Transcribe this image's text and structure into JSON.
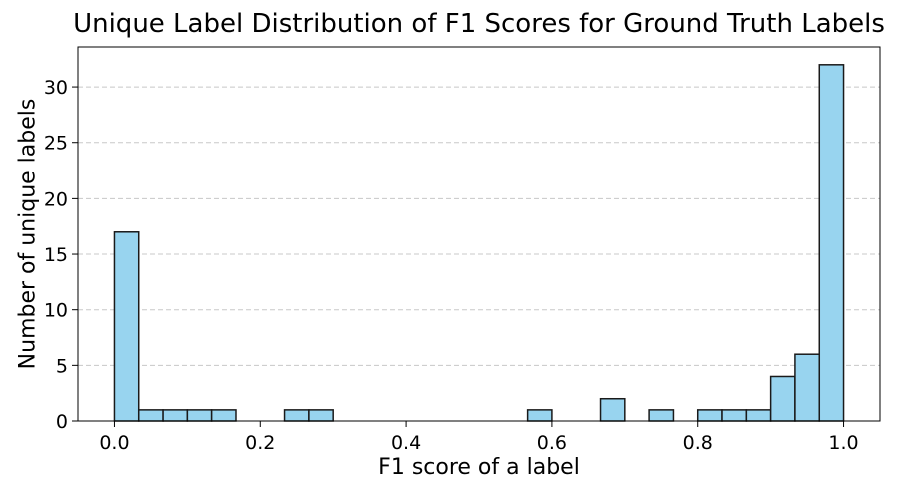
{
  "chart_data": {
    "type": "bar",
    "title": "Unique Label Distribution of F1 Scores for Ground Truth Labels",
    "xlabel": "F1 score of a label",
    "ylabel": "Number of unique labels",
    "xlim": [
      -0.05,
      1.05
    ],
    "ylim": [
      0,
      33.6
    ],
    "x_ticks": [
      0.0,
      0.2,
      0.4,
      0.6,
      0.8,
      1.0
    ],
    "x_tick_labels": [
      "0.0",
      "0.2",
      "0.4",
      "0.6",
      "0.8",
      "1.0"
    ],
    "y_ticks": [
      0,
      5,
      10,
      15,
      20,
      25,
      30
    ],
    "y_tick_labels": [
      "0",
      "5",
      "10",
      "15",
      "20",
      "25",
      "30"
    ],
    "bin_edges": [
      0.0,
      0.0333,
      0.0667,
      0.1,
      0.1333,
      0.1667,
      0.2,
      0.2333,
      0.2667,
      0.3,
      0.3333,
      0.3667,
      0.4,
      0.4333,
      0.4667,
      0.5,
      0.5333,
      0.5667,
      0.6,
      0.6333,
      0.6667,
      0.7,
      0.7333,
      0.7667,
      0.8,
      0.8333,
      0.8667,
      0.9,
      0.9333,
      0.9667,
      1.0
    ],
    "values": [
      17,
      1,
      1,
      1,
      1,
      0,
      0,
      1,
      1,
      0,
      0,
      0,
      0,
      0,
      0,
      0,
      0,
      1,
      0,
      0,
      2,
      0,
      1,
      0,
      1,
      1,
      1,
      4,
      6,
      32
    ],
    "grid": "y-dashed",
    "colors": {
      "bar_fill": "#98d4ef",
      "bar_edge": "#1a1a1a",
      "grid": "#c8c8c8"
    }
  }
}
